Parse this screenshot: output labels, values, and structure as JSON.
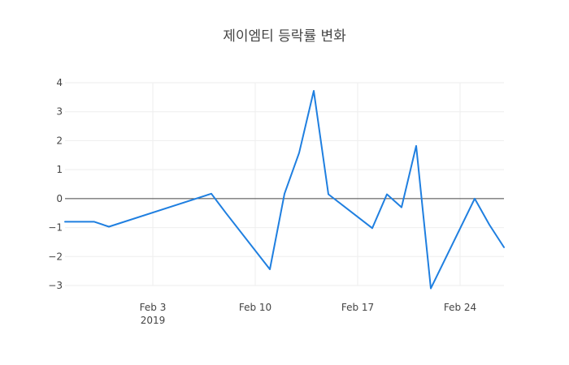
{
  "chart_data": {
    "type": "line",
    "title": "제이엠티 등락률 변화",
    "xlabel": "",
    "ylabel": "",
    "x_tick_labels": [
      {
        "date": "2019-02-03",
        "line1": "Feb 3",
        "line2": "2019"
      },
      {
        "date": "2019-02-10",
        "line1": "Feb 10",
        "line2": ""
      },
      {
        "date": "2019-02-17",
        "line1": "Feb 17",
        "line2": ""
      },
      {
        "date": "2019-02-24",
        "line1": "Feb 24",
        "line2": ""
      }
    ],
    "y_ticks": [
      "−3",
      "−2",
      "−1",
      "0",
      "1",
      "2",
      "3",
      "4"
    ],
    "xlim": [
      "2019-01-28",
      "2019-02-26"
    ],
    "ylim": [
      -3.4,
      4.1
    ],
    "grid": true,
    "zero_line": true,
    "color": "#1f7fe0",
    "x": [
      "2019-01-28",
      "2019-01-29",
      "2019-01-30",
      "2019-01-31",
      "2019-02-07",
      "2019-02-08",
      "2019-02-11",
      "2019-02-12",
      "2019-02-13",
      "2019-02-14",
      "2019-02-15",
      "2019-02-18",
      "2019-02-19",
      "2019-02-20",
      "2019-02-21",
      "2019-02-22",
      "2019-02-25",
      "2019-02-26",
      "2019-02-27"
    ],
    "y": [
      -0.8,
      -0.8,
      -0.8,
      -0.97,
      0.17,
      -0.5,
      -2.44,
      0.17,
      1.58,
      3.72,
      0.15,
      -1.02,
      0.15,
      -0.3,
      1.82,
      -3.1,
      0.0,
      -0.9,
      -1.68
    ]
  }
}
